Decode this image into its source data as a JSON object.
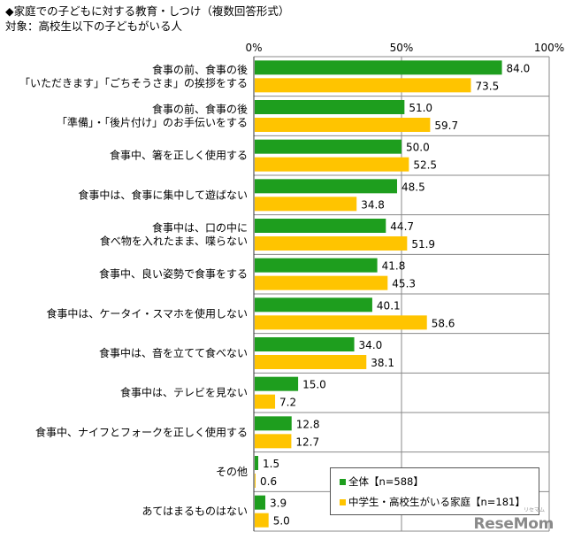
{
  "title_lines": [
    "◆家庭での子どもに対する教育・しつけ（複数回答形式）",
    "対象：高校生以下の子どもがいる人"
  ],
  "chart_data": {
    "type": "bar",
    "orientation": "horizontal",
    "xlim": [
      0,
      100
    ],
    "ticks": [
      "0%",
      "50%",
      "100%"
    ],
    "tick_values": [
      0,
      50,
      100
    ],
    "categories": [
      [
        "食事の前、食事の後",
        "「いただきます」「ごちそうさま」の挨拶をする"
      ],
      [
        "食事の前、食事の後",
        "「準備」・「後片付け」のお手伝いをする"
      ],
      [
        "食事中、箸を正しく使用する"
      ],
      [
        "食事中は、食事に集中して遊ばない"
      ],
      [
        "食事中は、口の中に",
        "食べ物を入れたまま、喋らない"
      ],
      [
        "食事中、良い姿勢で食事をする"
      ],
      [
        "食事中は、ケータイ・スマホを使用しない"
      ],
      [
        "食事中は、音を立てて食べない"
      ],
      [
        "食事中は、テレビを見ない"
      ],
      [
        "食事中、ナイフとフォークを正しく使用する"
      ],
      [
        "その他"
      ],
      [
        "あてはまるものはない"
      ]
    ],
    "series": [
      {
        "name": "全体【n=588】",
        "color": "#1e9e1e",
        "values": [
          84.0,
          51.0,
          50.0,
          48.5,
          44.7,
          41.8,
          40.1,
          34.0,
          15.0,
          12.8,
          1.5,
          3.9
        ]
      },
      {
        "name": "中学生・高校生がいる家庭【n=181】",
        "color": "#ffc400",
        "values": [
          73.5,
          59.7,
          52.5,
          34.8,
          51.9,
          45.3,
          58.6,
          38.1,
          7.2,
          12.7,
          0.6,
          5.0
        ]
      }
    ],
    "legend_position": "bottom-right",
    "grid": "vertical lines at 50% and 100%"
  },
  "watermark": {
    "text": "ReseMom",
    "sub": "リセマム"
  }
}
